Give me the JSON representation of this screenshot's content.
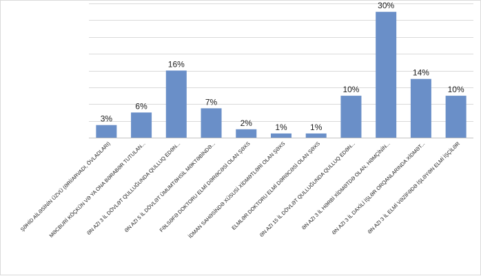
{
  "chart_data": {
    "type": "bar",
    "title": "",
    "xlabel": "",
    "ylabel": "",
    "ylim": [
      0,
      32
    ],
    "grid": true,
    "legend": "none",
    "bar_color": "#6a8fc8",
    "categories": [
      "ŞƏHİD AİLƏSİNİN ÜZVÜ (ƏRİ/ARVADI, ÖVLADLARI)",
      "MƏCBURİ KÖÇKÜN VƏ YA ONA BƏRABƏR TUTULAN...",
      "ƏN AZI 3 İL DÖVLƏT QULLUĞUNDA QULLUQ EDƏN...",
      "ƏN AZI 5 İL DÖVLƏT ÜMUMTƏHSİL MƏKTƏBİNDƏ...",
      "FƏLSƏFƏ DOKTORU ELMİ DƏRƏCƏSİ OLAN ŞƏXS",
      "İDMAN SAHƏSİNDƏ XÜSUSİ XİDMƏTLƏRİ OLAN ŞƏXS",
      "ELMLƏR DOKTORU ELMİ DƏRƏCƏSİ OLAN ŞƏXS",
      "ƏN AZI 15 İL DÖVLƏT QULLUĞUNDA QULLUQ EDƏN...",
      "ƏN AZI 3 İL HƏRBİ XİDMƏTDƏ OLAN, HƏMÇİNİN...",
      "ƏN AZI 3 İL DAXİLİ İŞLƏR ORQANLARINDA XİDMƏT...",
      "ƏN AZI 3 İL ELMİ VƏZİFƏDƏ İŞLƏYƏN ELMİ İŞÇİLƏR"
    ],
    "values": [
      3,
      6,
      16,
      7,
      2,
      1,
      1,
      10,
      30,
      14,
      10
    ],
    "value_labels": [
      "3%",
      "6%",
      "16%",
      "7%",
      "2%",
      "1%",
      "1%",
      "10%",
      "30%",
      "14%",
      "10%"
    ]
  }
}
